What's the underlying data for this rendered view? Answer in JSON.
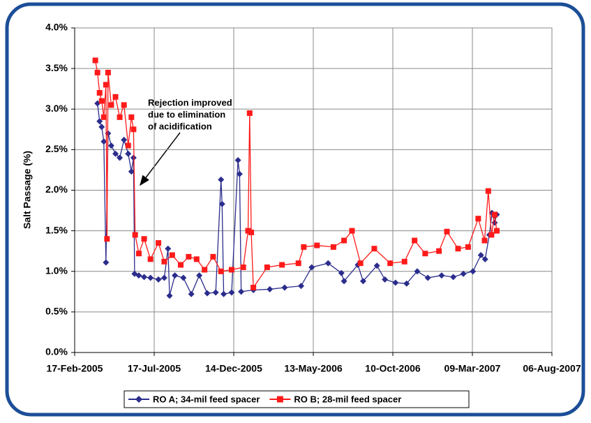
{
  "chart_data": {
    "type": "line",
    "ylabel": "Salt Passage (%)",
    "annotation": [
      "Rejection improved",
      "due to elimination",
      "of acidification"
    ],
    "ylim": [
      0,
      4
    ],
    "yticks": [
      {
        "value": 0,
        "label": "0.0%"
      },
      {
        "value": 0.5,
        "label": "0.5%"
      },
      {
        "value": 1,
        "label": "1.0%"
      },
      {
        "value": 1.5,
        "label": "1.5%"
      },
      {
        "value": 2,
        "label": "2.0%"
      },
      {
        "value": 2.5,
        "label": "2.5%"
      },
      {
        "value": 3,
        "label": "3.0%"
      },
      {
        "value": 3.5,
        "label": "3.5%"
      },
      {
        "value": 4,
        "label": "4.0%"
      }
    ],
    "xlim": [
      "2005-02-17",
      "2007-08-06"
    ],
    "xticks": [
      {
        "value": "2005-02-17",
        "label": "17-Feb-2005"
      },
      {
        "value": "2005-07-17",
        "label": "17-Jul-2005"
      },
      {
        "value": "2005-12-14",
        "label": "14-Dec-2005"
      },
      {
        "value": "2006-05-13",
        "label": "13-May-2006"
      },
      {
        "value": "2006-10-10",
        "label": "10-Oct-2006"
      },
      {
        "value": "2007-03-09",
        "label": "09-Mar-2007"
      },
      {
        "value": "2007-08-06",
        "label": "06-Aug-2007"
      }
    ],
    "grid": true,
    "legend": "bottom",
    "series": [
      {
        "name": "RO A; 34-mil feed spacer",
        "color": "#2b2d8c",
        "marker": "diamond",
        "x": [
          "2005-04-01",
          "2005-04-05",
          "2005-04-09",
          "2005-04-13",
          "2005-04-17",
          "2005-04-21",
          "2005-04-27",
          "2005-05-05",
          "2005-05-13",
          "2005-05-21",
          "2005-05-29",
          "2005-06-04",
          "2005-06-08",
          "2005-06-10",
          "2005-06-18",
          "2005-06-28",
          "2005-07-10",
          "2005-07-25",
          "2005-08-05",
          "2005-08-12",
          "2005-08-15",
          "2005-08-25",
          "2005-09-10",
          "2005-09-25",
          "2005-10-10",
          "2005-10-25",
          "2005-11-10",
          "2005-11-20",
          "2005-11-22",
          "2005-11-25",
          "2005-12-10",
          "2005-12-22",
          "2005-12-25",
          "2005-12-28",
          "2006-01-20",
          "2006-02-20",
          "2006-03-20",
          "2006-04-20",
          "2006-05-10",
          "2006-06-10",
          "2006-07-05",
          "2006-07-10",
          "2006-08-05",
          "2006-08-15",
          "2006-09-10",
          "2006-09-25",
          "2006-10-15",
          "2006-11-05",
          "2006-11-25",
          "2006-12-15",
          "2007-01-10",
          "2007-02-01",
          "2007-02-20",
          "2007-03-10",
          "2007-03-25",
          "2007-04-02",
          "2007-04-10",
          "2007-04-15",
          "2007-04-20",
          "2007-04-24"
        ],
        "values": [
          3.07,
          2.85,
          2.78,
          2.6,
          1.11,
          2.7,
          2.55,
          2.45,
          2.4,
          2.62,
          2.45,
          2.23,
          2.4,
          0.97,
          0.95,
          0.93,
          0.92,
          0.9,
          0.92,
          1.28,
          0.7,
          0.95,
          0.92,
          0.72,
          0.95,
          0.73,
          0.74,
          2.13,
          1.83,
          0.72,
          0.74,
          2.37,
          2.2,
          0.75,
          0.77,
          0.78,
          0.8,
          0.82,
          1.05,
          1.1,
          0.98,
          0.88,
          1.08,
          0.88,
          1.07,
          0.9,
          0.86,
          0.85,
          1.0,
          0.92,
          0.95,
          0.93,
          0.97,
          1.0,
          1.2,
          1.15,
          1.45,
          1.72,
          1.6,
          1.7
        ]
      },
      {
        "name": "RO B; 28-mil feed spacer",
        "color": "#ff1a1a",
        "marker": "square",
        "x": [
          "2005-03-28",
          "2005-04-01",
          "2005-04-05",
          "2005-04-09",
          "2005-04-13",
          "2005-04-17",
          "2005-04-19",
          "2005-04-21",
          "2005-04-27",
          "2005-05-05",
          "2005-05-13",
          "2005-05-21",
          "2005-05-29",
          "2005-06-04",
          "2005-06-08",
          "2005-06-11",
          "2005-06-18",
          "2005-06-28",
          "2005-07-10",
          "2005-07-25",
          "2005-08-05",
          "2005-08-20",
          "2005-09-05",
          "2005-09-20",
          "2005-10-05",
          "2005-10-20",
          "2005-11-05",
          "2005-11-20",
          "2005-12-10",
          "2006-01-01",
          "2006-01-10",
          "2006-01-13",
          "2006-01-16",
          "2006-01-20",
          "2006-02-15",
          "2006-03-15",
          "2006-04-15",
          "2006-04-25",
          "2006-05-20",
          "2006-06-20",
          "2006-07-10",
          "2006-07-25",
          "2006-08-10",
          "2006-09-05",
          "2006-10-05",
          "2006-11-01",
          "2006-11-20",
          "2006-12-10",
          "2007-01-05",
          "2007-01-20",
          "2007-02-10",
          "2007-03-01",
          "2007-03-20",
          "2007-04-01",
          "2007-04-08",
          "2007-04-14",
          "2007-04-20",
          "2007-04-24"
        ],
        "values": [
          3.6,
          3.45,
          3.2,
          3.1,
          2.9,
          3.3,
          1.4,
          3.45,
          3.05,
          3.15,
          2.9,
          3.05,
          2.55,
          2.9,
          2.75,
          1.45,
          1.22,
          1.4,
          1.15,
          1.35,
          1.12,
          1.2,
          1.08,
          1.18,
          1.15,
          1.02,
          1.18,
          1.0,
          1.02,
          1.05,
          1.5,
          2.95,
          1.48,
          0.8,
          1.05,
          1.08,
          1.1,
          1.3,
          1.32,
          1.3,
          1.38,
          1.5,
          1.1,
          1.28,
          1.1,
          1.12,
          1.38,
          1.22,
          1.25,
          1.49,
          1.28,
          1.3,
          1.65,
          1.38,
          1.99,
          1.45,
          1.7,
          1.5
        ]
      }
    ]
  }
}
